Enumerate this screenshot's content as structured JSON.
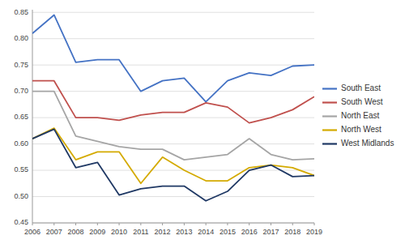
{
  "chart_data": {
    "type": "line",
    "x": [
      2006,
      2007,
      2008,
      2009,
      2010,
      2011,
      2012,
      2013,
      2014,
      2015,
      2016,
      2017,
      2018,
      2019
    ],
    "xlim": [
      2006,
      2019
    ],
    "xticks": [
      2006,
      2007,
      2008,
      2009,
      2010,
      2011,
      2012,
      2013,
      2014,
      2015,
      2016,
      2017,
      2018,
      2019
    ],
    "series": [
      {
        "name": "South East",
        "color": "#4472C4",
        "values": [
          0.81,
          0.845,
          0.755,
          0.76,
          0.76,
          0.7,
          0.72,
          0.725,
          0.68,
          0.72,
          0.735,
          0.73,
          0.748,
          0.75
        ]
      },
      {
        "name": "South West",
        "color": "#C0504D",
        "values": [
          0.72,
          0.72,
          0.65,
          0.65,
          0.645,
          0.655,
          0.66,
          0.66,
          0.678,
          0.67,
          0.64,
          0.65,
          0.665,
          0.69
        ]
      },
      {
        "name": "North East",
        "color": "#A5A5A5",
        "values": [
          0.7,
          0.7,
          0.615,
          0.605,
          0.595,
          0.59,
          0.59,
          0.57,
          0.575,
          0.58,
          0.61,
          0.58,
          0.57,
          0.572
        ]
      },
      {
        "name": "North West",
        "color": "#D4AA00",
        "values": [
          0.61,
          0.63,
          0.57,
          0.585,
          0.585,
          0.525,
          0.575,
          0.55,
          0.53,
          0.53,
          0.555,
          0.56,
          0.555,
          0.54
        ]
      },
      {
        "name": "West Midlands",
        "color": "#1F3864",
        "values": [
          0.61,
          0.628,
          0.555,
          0.565,
          0.503,
          0.515,
          0.52,
          0.52,
          0.492,
          0.51,
          0.55,
          0.56,
          0.538,
          0.54
        ]
      }
    ],
    "ylim": [
      0.45,
      0.855
    ],
    "yticks": [
      0.45,
      {
        "value": 0.5,
        "label": "0.50"
      },
      0.55,
      {
        "value": 0.6,
        "label": "0.60"
      },
      0.65,
      {
        "value": 0.7,
        "label": "0.70"
      },
      0.75,
      {
        "value": 0.8,
        "label": "0.80"
      },
      0.85
    ],
    "grid": true,
    "legend": "right"
  }
}
